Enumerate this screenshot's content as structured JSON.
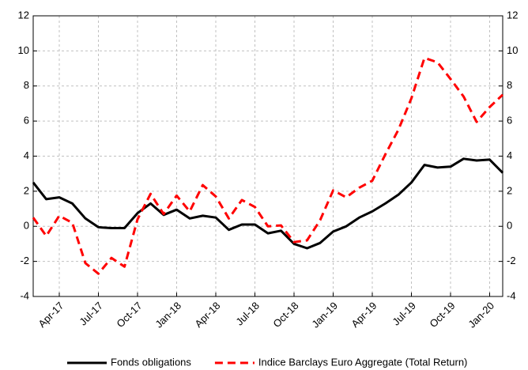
{
  "chart_data": {
    "type": "line",
    "categories": [
      null,
      null,
      "Apr-17",
      null,
      null,
      "Jul-17",
      null,
      null,
      "Oct-17",
      null,
      null,
      "Jan-18",
      null,
      null,
      "Apr-18",
      null,
      null,
      "Jul-18",
      null,
      null,
      "Oct-18",
      null,
      null,
      "Jan-19",
      null,
      null,
      "Apr-19",
      null,
      null,
      "Jul-19",
      null,
      null,
      "Oct-19",
      null,
      null,
      "Jan-20",
      null
    ],
    "series": [
      {
        "name": "Fonds obligations",
        "color": "#000000",
        "dash": "solid",
        "values": [
          2.5,
          1.55,
          1.65,
          1.3,
          0.45,
          -0.05,
          -0.1,
          -0.1,
          0.75,
          1.3,
          0.65,
          0.95,
          0.45,
          0.6,
          0.5,
          -0.2,
          0.1,
          0.1,
          -0.4,
          -0.25,
          -1.0,
          -1.25,
          -0.95,
          -0.3,
          0.0,
          0.5,
          0.85,
          1.3,
          1.8,
          2.5,
          3.5,
          3.35,
          3.4,
          3.85,
          3.75,
          3.8,
          3.05
        ]
      },
      {
        "name": "Indice Barclays Euro Aggregate (Total Return)",
        "color": "#ff0000",
        "dash": "dashed",
        "values": [
          0.5,
          -0.55,
          0.6,
          0.2,
          -2.1,
          -2.7,
          -1.8,
          -2.3,
          0.4,
          1.85,
          0.7,
          1.75,
          0.85,
          2.35,
          1.7,
          0.45,
          1.5,
          1.1,
          0.0,
          0.05,
          -0.9,
          -0.8,
          0.35,
          2.05,
          1.65,
          2.2,
          2.6,
          4.1,
          5.5,
          7.3,
          9.6,
          9.35,
          8.4,
          7.4,
          5.95,
          6.8,
          7.5
        ]
      }
    ],
    "ylim": [
      -4,
      12
    ],
    "yticks": [
      -4,
      -2,
      0,
      2,
      4,
      6,
      8,
      10,
      12
    ],
    "y2lim": [
      -4,
      12
    ],
    "y2ticks": [
      -4,
      -2,
      0,
      2,
      4,
      6,
      8,
      10,
      12
    ],
    "grid": true,
    "legend": "bottom"
  }
}
